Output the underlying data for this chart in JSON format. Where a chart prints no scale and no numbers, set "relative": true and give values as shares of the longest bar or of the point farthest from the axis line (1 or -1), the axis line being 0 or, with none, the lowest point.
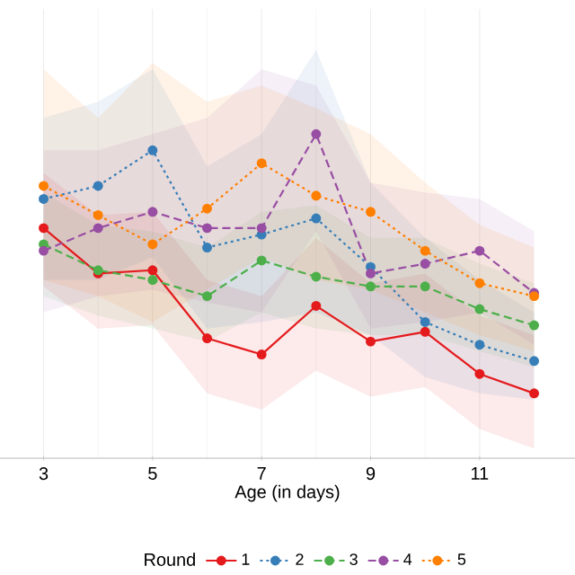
{
  "chart_data": {
    "type": "line",
    "xlabel": "Age (in days)",
    "legend_title": "Round",
    "relative": true,
    "x": [
      3,
      4,
      5,
      6,
      7,
      8,
      9,
      10,
      11,
      12
    ],
    "xlim": [
      2.2,
      12.75
    ],
    "xticks": [
      3,
      5,
      7,
      9,
      11
    ],
    "grid": true,
    "legend": "bottom",
    "marker": "circle",
    "series": [
      {
        "name": "1",
        "color": "#e41a1c",
        "line_style": "solid",
        "values": [
          0.71,
          0.57,
          0.58,
          0.37,
          0.32,
          0.47,
          0.36,
          0.39,
          0.26,
          0.2
        ],
        "lower": [
          0.53,
          0.4,
          0.41,
          0.2,
          0.15,
          0.27,
          0.19,
          0.22,
          0.09,
          0.03
        ],
        "upper": [
          0.88,
          0.75,
          0.76,
          0.55,
          0.5,
          0.68,
          0.54,
          0.57,
          0.44,
          0.38
        ]
      },
      {
        "name": "2",
        "color": "#377eb8",
        "line_style": "dotted",
        "values": [
          0.8,
          0.84,
          0.95,
          0.65,
          0.69,
          0.74,
          0.59,
          0.42,
          0.35,
          0.3
        ],
        "lower": [
          0.55,
          0.55,
          0.62,
          0.4,
          0.42,
          0.45,
          0.38,
          0.25,
          0.2,
          0.18
        ],
        "upper": [
          1.05,
          1.1,
          1.2,
          0.9,
          1.0,
          1.26,
          0.85,
          0.68,
          0.55,
          0.45
        ]
      },
      {
        "name": "3",
        "color": "#4daf4a",
        "line_style": "dashed",
        "values": [
          0.66,
          0.58,
          0.55,
          0.5,
          0.61,
          0.56,
          0.53,
          0.53,
          0.46,
          0.41
        ],
        "lower": [
          0.5,
          0.44,
          0.4,
          0.36,
          0.45,
          0.4,
          0.38,
          0.38,
          0.33,
          0.28
        ],
        "upper": [
          0.82,
          0.72,
          0.7,
          0.65,
          0.76,
          0.78,
          0.68,
          0.68,
          0.6,
          0.54
        ]
      },
      {
        "name": "4",
        "color": "#984ea3",
        "line_style": "dashed",
        "values": [
          0.64,
          0.71,
          0.76,
          0.71,
          0.71,
          1.0,
          0.57,
          0.6,
          0.64,
          0.51
        ],
        "lower": [
          0.45,
          0.5,
          0.52,
          0.48,
          0.45,
          0.7,
          0.4,
          0.42,
          0.45,
          0.35
        ],
        "upper": [
          0.95,
          0.95,
          1.0,
          1.05,
          1.2,
          1.15,
          0.85,
          0.82,
          0.8,
          0.7
        ]
      },
      {
        "name": "5",
        "color": "#ff7f00",
        "line_style": "dotted",
        "values": [
          0.84,
          0.75,
          0.66,
          0.77,
          0.91,
          0.81,
          0.76,
          0.64,
          0.54,
          0.5
        ],
        "lower": [
          0.55,
          0.5,
          0.42,
          0.52,
          0.62,
          0.55,
          0.52,
          0.45,
          0.38,
          0.33
        ],
        "upper": [
          1.2,
          1.05,
          1.22,
          1.1,
          1.15,
          1.08,
          1.0,
          0.85,
          0.72,
          0.65
        ]
      }
    ]
  }
}
